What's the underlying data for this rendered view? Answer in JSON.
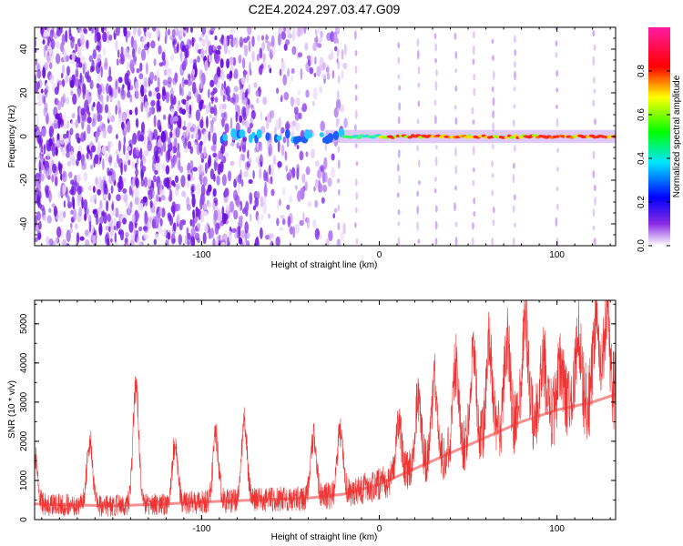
{
  "title": "C2E4.2024.297.03.47.G09",
  "chart_data": [
    {
      "type": "heatmap",
      "title": "C2E4.2024.297.03.47.G09",
      "xlabel": "Height of straight line (km)",
      "ylabel": "Frequency (Hz)",
      "xlim": [
        -194,
        133
      ],
      "ylim": [
        -50,
        50
      ],
      "x_ticks": [
        -100,
        0,
        100
      ],
      "y_ticks": [
        -40,
        -20,
        0,
        20,
        40
      ],
      "colorbar": {
        "label": "Normalized spectral amplitude",
        "range": [
          0.0,
          1.0
        ],
        "ticks": [
          0.0,
          0.2,
          0.4,
          0.6,
          0.8
        ],
        "tick_labels": [
          "0.0",
          "0.2",
          "0.4",
          "0.6",
          "0.8"
        ],
        "colormap": "rainbow (white-purple-blue-cyan-green-yellow-red-pink)"
      },
      "signal_band": {
        "center_frequency_hz": 0,
        "x_start_km": -90,
        "x_end_km": 133,
        "description": "strong narrow line near 0 Hz, peaks (red) between about -20 and 130 km"
      },
      "periodic_stripes_km": [
        -23,
        -13,
        11,
        22,
        32,
        43,
        53,
        64,
        76,
        100,
        121
      ],
      "background": "broadband purple noise for x < -20 km"
    },
    {
      "type": "line",
      "xlabel": "Height of straight line (km)",
      "ylabel": "SNR (10 * v/v)",
      "xlim": [
        -194,
        133
      ],
      "ylim": [
        0,
        5600
      ],
      "x_ticks": [
        -100,
        0,
        100
      ],
      "y_ticks": [
        0,
        1000,
        2000,
        3000,
        4000,
        5000
      ],
      "color": "#ee3333",
      "baseline_trend": {
        "x": [
          -194,
          -150,
          -120,
          -100,
          -70,
          -40,
          -20,
          0,
          20,
          40,
          60,
          80,
          100,
          120,
          133
        ],
        "y": [
          400,
          350,
          400,
          450,
          500,
          550,
          650,
          900,
          1300,
          1700,
          2100,
          2500,
          2800,
          3000,
          3200
        ]
      },
      "peaks": {
        "x": [
          -194,
          -163,
          -137,
          -115,
          -92,
          -76,
          -37,
          -22,
          11,
          22,
          31,
          43,
          53,
          62,
          72,
          82,
          92,
          102,
          112,
          122,
          128
        ],
        "y": [
          1800,
          2200,
          3850,
          2100,
          2350,
          2700,
          2300,
          2450,
          2650,
          3400,
          3700,
          4200,
          4600,
          4800,
          4900,
          5550,
          4400,
          4000,
          5000,
          5600,
          5500
        ]
      }
    }
  ]
}
